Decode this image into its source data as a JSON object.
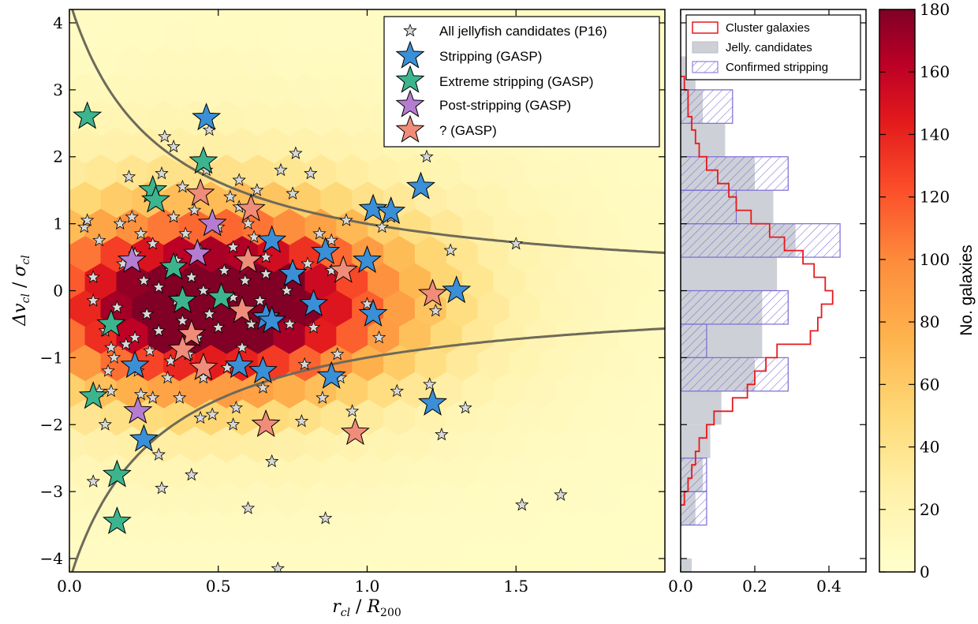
{
  "chart_data": [
    {
      "type": "scatter",
      "panel": "main",
      "xlabel_parts": {
        "a": "r",
        "a_sub": "cl",
        "sep": " / ",
        "b": "R",
        "b_sub": "200"
      },
      "ylabel_parts": {
        "a": "Δv",
        "a_sub": "cl",
        "sep": " / ",
        "b": "σ",
        "b_sub": "cl"
      },
      "xlim": [
        0.0,
        2.0
      ],
      "ylim": [
        -4.2,
        4.2
      ],
      "xticks": [
        "0.0",
        "0.5",
        "1.0",
        "1.5"
      ],
      "yticks": [
        "−4",
        "−3",
        "−2",
        "−1",
        "0",
        "1",
        "2",
        "3",
        "4"
      ],
      "background": {
        "type": "hexbin density",
        "colormap": "YlOrRd",
        "density_peak": {
          "x": 0.5,
          "y": -0.2,
          "sigma_x": 0.4,
          "sigma_y": 0.85,
          "max_count": 180
        }
      },
      "caustic": {
        "description": "y = ±A / (x + c)",
        "A": 1.3,
        "c": 0.3,
        "color": "#6e6a5a"
      },
      "legend": {
        "position": "top-right"
      },
      "series": [
        {
          "name": "All jellyfish candidates (P16)",
          "marker": "small-star",
          "color": "#d8d8d8",
          "points": [
            [
              0.05,
              0.95
            ],
            [
              0.06,
              1.05
            ],
            [
              0.08,
              0.2
            ],
            [
              0.08,
              -0.15
            ],
            [
              0.1,
              0.75
            ],
            [
              0.12,
              -0.6
            ],
            [
              0.13,
              -1.2
            ],
            [
              0.12,
              -2.0
            ],
            [
              0.14,
              -1.5
            ],
            [
              0.15,
              -1.0
            ],
            [
              0.16,
              -0.25
            ],
            [
              0.18,
              0.4
            ],
            [
              0.17,
              1.0
            ],
            [
              0.19,
              -0.8
            ],
            [
              0.2,
              1.7
            ],
            [
              0.21,
              1.1
            ],
            [
              0.22,
              0.55
            ],
            [
              0.22,
              -0.7
            ],
            [
              0.23,
              -1.2
            ],
            [
              0.24,
              -1.55
            ],
            [
              0.24,
              0.85
            ],
            [
              0.25,
              0.15
            ],
            [
              0.26,
              -0.35
            ],
            [
              0.27,
              -0.9
            ],
            [
              0.28,
              0.7
            ],
            [
              0.28,
              -1.6
            ],
            [
              0.29,
              1.3
            ],
            [
              0.3,
              0.05
            ],
            [
              0.3,
              -0.6
            ],
            [
              0.31,
              1.75
            ],
            [
              0.31,
              -2.95
            ],
            [
              0.32,
              2.3
            ],
            [
              0.33,
              -1.3
            ],
            [
              0.34,
              0.3
            ],
            [
              0.34,
              -1.05
            ],
            [
              0.35,
              2.15
            ],
            [
              0.35,
              1.1
            ],
            [
              0.36,
              0.45
            ],
            [
              0.36,
              -0.15
            ],
            [
              0.37,
              -1.6
            ],
            [
              0.38,
              -0.45
            ],
            [
              0.38,
              1.55
            ],
            [
              0.39,
              0.85
            ],
            [
              0.4,
              -0.95
            ],
            [
              0.41,
              0.2
            ],
            [
              0.41,
              -2.75
            ],
            [
              0.42,
              1.2
            ],
            [
              0.43,
              -0.7
            ],
            [
              0.44,
              0.6
            ],
            [
              0.45,
              -1.3
            ],
            [
              0.45,
              0.0
            ],
            [
              0.46,
              1.8
            ],
            [
              0.47,
              2.4
            ],
            [
              0.47,
              -0.35
            ],
            [
              0.48,
              -1.85
            ],
            [
              0.5,
              0.95
            ],
            [
              0.5,
              -0.55
            ],
            [
              0.52,
              0.3
            ],
            [
              0.53,
              -1.15
            ],
            [
              0.54,
              1.4
            ],
            [
              0.55,
              -0.1
            ],
            [
              0.55,
              0.65
            ],
            [
              0.56,
              -1.75
            ],
            [
              0.57,
              1.65
            ],
            [
              0.57,
              1.25
            ],
            [
              0.58,
              -0.85
            ],
            [
              0.59,
              0.15
            ],
            [
              0.6,
              1.0
            ],
            [
              0.6,
              -3.25
            ],
            [
              0.61,
              -0.5
            ],
            [
              0.62,
              0.8
            ],
            [
              0.63,
              1.5
            ],
            [
              0.64,
              -0.15
            ],
            [
              0.65,
              -1.45
            ],
            [
              0.66,
              0.5
            ],
            [
              0.68,
              -2.55
            ],
            [
              0.7,
              -4.15
            ],
            [
              0.71,
              1.8
            ],
            [
              0.73,
              0.0
            ],
            [
              0.74,
              -0.5
            ],
            [
              0.75,
              1.45
            ],
            [
              0.76,
              2.05
            ],
            [
              0.78,
              -1.95
            ],
            [
              0.79,
              -1.1
            ],
            [
              0.8,
              0.4
            ],
            [
              0.81,
              1.75
            ],
            [
              0.82,
              -0.55
            ],
            [
              0.84,
              0.85
            ],
            [
              0.85,
              -1.6
            ],
            [
              0.86,
              -3.4
            ],
            [
              0.88,
              0.3
            ],
            [
              0.9,
              -0.95
            ],
            [
              0.91,
              -1.3
            ],
            [
              0.93,
              1.05
            ],
            [
              0.95,
              -1.8
            ],
            [
              1.0,
              -0.2
            ],
            [
              1.04,
              -0.7
            ],
            [
              1.05,
              0.95
            ],
            [
              1.08,
              1.1
            ],
            [
              1.1,
              -1.5
            ],
            [
              1.2,
              2.0
            ],
            [
              1.21,
              -1.4
            ],
            [
              1.23,
              -0.3
            ],
            [
              1.25,
              -2.15
            ],
            [
              1.28,
              0.6
            ],
            [
              1.33,
              -1.75
            ],
            [
              1.5,
              0.7
            ],
            [
              1.52,
              -3.2
            ],
            [
              1.65,
              -3.05
            ],
            [
              0.1,
              -1.5
            ],
            [
              0.14,
              -0.85
            ],
            [
              0.08,
              -2.85
            ],
            [
              0.3,
              -2.45
            ],
            [
              0.55,
              -2.0
            ],
            [
              0.88,
              0.75
            ],
            [
              0.66,
              0.25
            ],
            [
              0.44,
              -1.9
            ]
          ]
        },
        {
          "name": "Stripping (GASP)",
          "marker": "star",
          "color": "#3a8fd6",
          "points": [
            [
              0.46,
              2.58
            ],
            [
              1.18,
              1.55
            ],
            [
              1.02,
              1.22
            ],
            [
              1.08,
              1.18
            ],
            [
              0.68,
              0.75
            ],
            [
              0.86,
              0.58
            ],
            [
              1.0,
              0.45
            ],
            [
              0.75,
              0.25
            ],
            [
              1.3,
              0.0
            ],
            [
              0.82,
              -0.2
            ],
            [
              0.66,
              -0.4
            ],
            [
              0.68,
              -0.45
            ],
            [
              1.02,
              -0.35
            ],
            [
              0.22,
              -1.12
            ],
            [
              0.57,
              -1.12
            ],
            [
              0.65,
              -1.2
            ],
            [
              0.88,
              -1.28
            ],
            [
              1.22,
              -1.68
            ],
            [
              0.25,
              -2.22
            ]
          ]
        },
        {
          "name": "Extreme stripping (GASP)",
          "marker": "star",
          "color": "#3cb58f",
          "points": [
            [
              0.06,
              2.6
            ],
            [
              0.45,
              1.93
            ],
            [
              0.28,
              1.5
            ],
            [
              0.29,
              1.35
            ],
            [
              0.35,
              0.35
            ],
            [
              0.51,
              -0.1
            ],
            [
              0.38,
              -0.15
            ],
            [
              0.14,
              -0.5
            ],
            [
              0.08,
              -1.58
            ],
            [
              0.16,
              -2.75
            ],
            [
              0.16,
              -3.45
            ]
          ]
        },
        {
          "name": "Post-stripping (GASP)",
          "marker": "star",
          "color": "#b57dd1",
          "points": [
            [
              0.48,
              1.0
            ],
            [
              0.21,
              0.45
            ],
            [
              0.43,
              0.55
            ],
            [
              0.23,
              -1.8
            ]
          ]
        },
        {
          "name": "? (GASP)",
          "marker": "star",
          "color": "#f08c7a",
          "points": [
            [
              0.44,
              1.45
            ],
            [
              0.61,
              1.22
            ],
            [
              0.6,
              0.45
            ],
            [
              0.92,
              0.3
            ],
            [
              0.58,
              -0.3
            ],
            [
              0.41,
              -0.65
            ],
            [
              0.38,
              -0.88
            ],
            [
              0.45,
              -1.15
            ],
            [
              0.66,
              -2.0
            ],
            [
              0.96,
              -2.12
            ],
            [
              1.22,
              -0.05
            ]
          ]
        }
      ]
    },
    {
      "type": "histogram",
      "panel": "side",
      "orientation": "horizontal",
      "xlim": [
        0.0,
        0.5
      ],
      "xticks": [
        "0.0",
        "0.2",
        "0.4"
      ],
      "bin_step": 0.5,
      "legend": {
        "position": "top"
      },
      "series": [
        {
          "name": "Jelly. candidates",
          "style": "filled",
          "color": "#cdd0d6",
          "bins": [
            [
              -4.5,
              0.03
            ],
            [
              -4.0,
              0.0
            ],
            [
              -3.5,
              0.04
            ],
            [
              -3.0,
              0.06
            ],
            [
              -2.5,
              0.08
            ],
            [
              -2.0,
              0.11
            ],
            [
              -1.5,
              0.2
            ],
            [
              -1.0,
              0.22
            ],
            [
              -0.5,
              0.22
            ],
            [
              0.0,
              0.26
            ],
            [
              0.5,
              0.31
            ],
            [
              1.0,
              0.25
            ],
            [
              1.5,
              0.2
            ],
            [
              2.0,
              0.12
            ],
            [
              2.5,
              0.06
            ],
            [
              3.0,
              0.04
            ],
            [
              3.5,
              0.0
            ]
          ]
        },
        {
          "name": "Confirmed stripping",
          "style": "hatched",
          "color": "#7b6bd4",
          "bins": [
            [
              -3.5,
              0.07
            ],
            [
              -3.0,
              0.07
            ],
            [
              -2.5,
              0.0
            ],
            [
              -2.0,
              0.0
            ],
            [
              -1.5,
              0.29
            ],
            [
              -1.0,
              0.07
            ],
            [
              -0.5,
              0.29
            ],
            [
              0.0,
              0.0
            ],
            [
              0.5,
              0.43
            ],
            [
              1.0,
              0.15
            ],
            [
              1.5,
              0.29
            ],
            [
              2.0,
              0.0
            ],
            [
              2.5,
              0.14
            ],
            [
              3.0,
              0.0
            ]
          ]
        },
        {
          "name": "Cluster galaxies",
          "style": "step",
          "color": "#e8191c",
          "edges": [
            -3.2,
            -3.0,
            -2.8,
            -2.6,
            -2.4,
            -2.2,
            -2.0,
            -1.8,
            -1.6,
            -1.4,
            -1.2,
            -1.0,
            -0.8,
            -0.6,
            -0.4,
            -0.2,
            0.0,
            0.2,
            0.4,
            0.6,
            0.8,
            1.0,
            1.2,
            1.4,
            1.6,
            1.8,
            2.0,
            2.2,
            2.4,
            2.6,
            2.8,
            3.0,
            3.2
          ],
          "values": [
            0.01,
            0.02,
            0.03,
            0.04,
            0.05,
            0.07,
            0.09,
            0.14,
            0.18,
            0.2,
            0.23,
            0.26,
            0.35,
            0.37,
            0.38,
            0.41,
            0.39,
            0.36,
            0.33,
            0.28,
            0.24,
            0.19,
            0.15,
            0.13,
            0.1,
            0.07,
            0.05,
            0.04,
            0.03,
            0.02,
            0.02,
            0.01
          ]
        }
      ]
    },
    {
      "type": "colorbar",
      "panel": "colorbar",
      "label": "No. galaxies",
      "range": [
        0,
        180
      ],
      "ticks": [
        "0",
        "20",
        "40",
        "60",
        "80",
        "100",
        "120",
        "140",
        "160",
        "180"
      ],
      "colormap": "YlOrRd"
    }
  ]
}
